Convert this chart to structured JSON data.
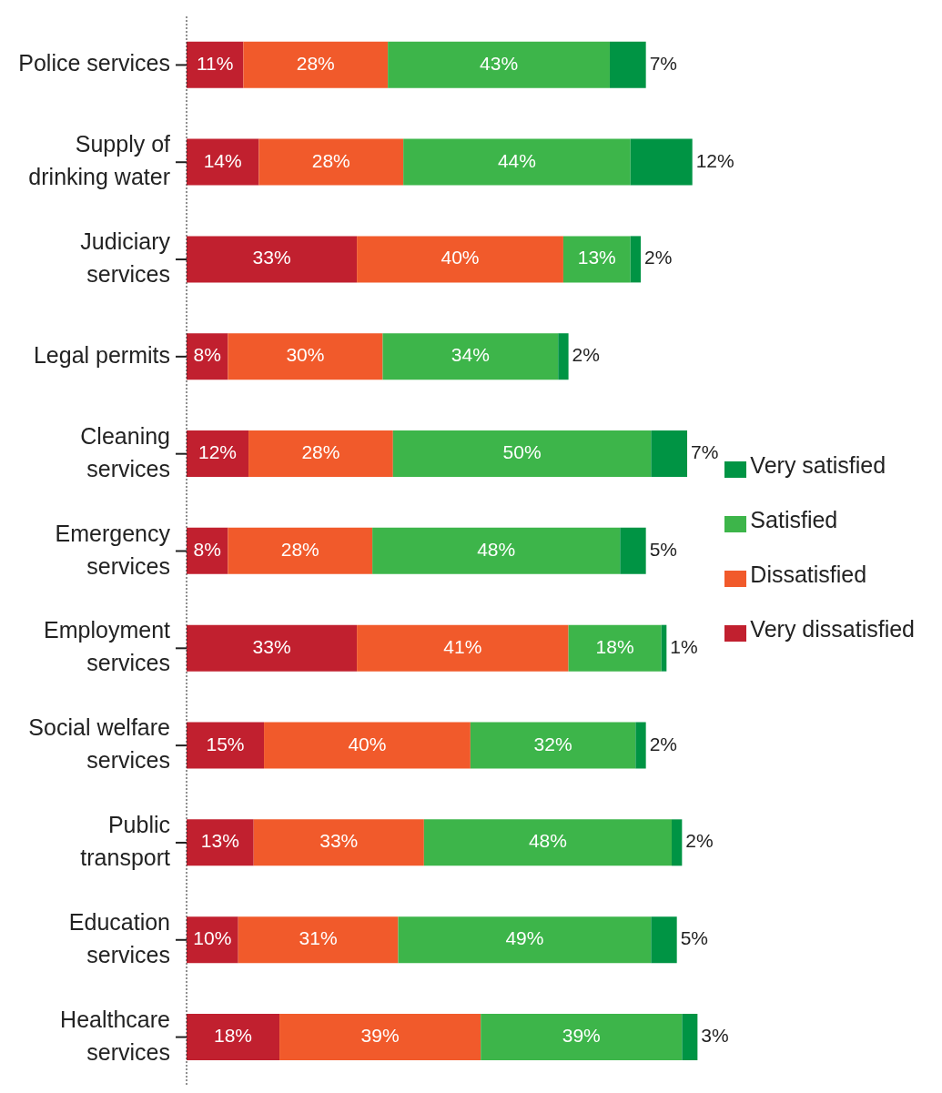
{
  "chart_data": {
    "type": "bar",
    "orientation": "horizontal",
    "stacked": true,
    "tick_labels": "y",
    "legend": "right",
    "categories": [
      "Police services",
      "Supply of drinking water",
      "Judiciary services",
      "Legal permits",
      "Cleaning services",
      "Emergency services",
      "Employment services",
      "Social welfare services",
      "Public transport",
      "Education services",
      "Healthcare services"
    ],
    "series": [
      {
        "name": "Very dissatisfied",
        "color": "#c1202f",
        "values": [
          11,
          14,
          33,
          8,
          12,
          8,
          33,
          15,
          13,
          10,
          18
        ],
        "value_labels": [
          "11%",
          "14%",
          "33%",
          "8%",
          "12%",
          "8%",
          "33%",
          "15%",
          "13%",
          "10%",
          "18%"
        ]
      },
      {
        "name": "Dissatisfied",
        "color": "#f15a2b",
        "values": [
          28,
          28,
          40,
          30,
          28,
          28,
          41,
          40,
          33,
          31,
          39
        ],
        "value_labels": [
          "28%",
          "28%",
          "40%",
          "30%",
          "28%",
          "28%",
          "41%",
          "40%",
          "33%",
          "31%",
          "39%"
        ]
      },
      {
        "name": "Satisfied",
        "color": "#3db54a",
        "values": [
          43,
          44,
          13,
          34,
          50,
          48,
          18,
          32,
          48,
          49,
          39
        ],
        "value_labels": [
          "43%",
          "44%",
          "13%",
          "34%",
          "50%",
          "48%",
          "18%",
          "32%",
          "48%",
          "49%",
          "39%"
        ]
      },
      {
        "name": "Very satisfied",
        "color": "#009444",
        "values": [
          7,
          12,
          2,
          2,
          7,
          5,
          1,
          2,
          2,
          5,
          3
        ],
        "value_labels": [
          "7%",
          "12%",
          "2%",
          "2%",
          "7%",
          "5%",
          "1%",
          "2%",
          "2%",
          "5%",
          "3%"
        ]
      }
    ]
  }
}
